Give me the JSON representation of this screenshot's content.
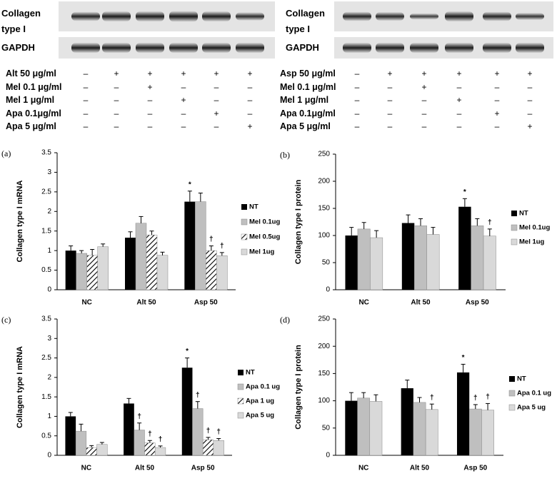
{
  "blots": [
    {
      "protein": "Collagen type I",
      "control": "GAPDH",
      "rows": [
        {
          "label": "Alt 50 μg/ml",
          "marks": [
            "–",
            "+",
            "+",
            "+",
            "+",
            "+"
          ]
        },
        {
          "label": "Mel 0.1 μg/ml",
          "marks": [
            "–",
            "–",
            "+",
            "–",
            "–",
            "–"
          ]
        },
        {
          "label": "Mel 1 μg/ml",
          "marks": [
            "–",
            "–",
            "–",
            "+",
            "–",
            "–"
          ]
        },
        {
          "label": "Apa 0.1μg/ml",
          "marks": [
            "–",
            "–",
            "–",
            "–",
            "+",
            "–"
          ]
        },
        {
          "label": "Apa 5 μg/ml",
          "marks": [
            "–",
            "–",
            "–",
            "–",
            "–",
            "+"
          ]
        }
      ]
    },
    {
      "protein": "Collagen type I",
      "control": "GAPDH",
      "rows": [
        {
          "label": "Asp 50 μg/ml",
          "marks": [
            "–",
            "+",
            "+",
            "+",
            "+",
            "+"
          ]
        },
        {
          "label": "Mel 0.1 μg/ml",
          "marks": [
            "–",
            "–",
            "+",
            "–",
            "–",
            "–"
          ]
        },
        {
          "label": "Mel 1 μg/ml",
          "marks": [
            "–",
            "–",
            "–",
            "+",
            "–",
            "–"
          ]
        },
        {
          "label": "Apa 0.1μg/ml",
          "marks": [
            "–",
            "–",
            "–",
            "–",
            "+",
            "–"
          ]
        },
        {
          "label": "Apa 5 μg/ml",
          "marks": [
            "–",
            "–",
            "–",
            "–",
            "–",
            "+"
          ]
        }
      ]
    }
  ],
  "chart_data": [
    {
      "type": "bar",
      "panel": "(a)",
      "y_label": "Collagen type I mRNA",
      "categories": [
        "NC",
        "Alt 50",
        "Asp 50"
      ],
      "ylim": [
        0,
        3.5
      ],
      "yticks": [
        0,
        0.5,
        1,
        1.5,
        2,
        2.5,
        3,
        3.5
      ],
      "series": [
        {
          "name": "NT",
          "color": "#000000",
          "values": [
            1.0,
            1.33,
            2.25
          ],
          "errors": [
            0.12,
            0.15,
            0.27
          ]
        },
        {
          "name": "Mel 0.1ug",
          "color": "#bfbfbf",
          "values": [
            0.93,
            1.7,
            2.25
          ],
          "errors": [
            0.07,
            0.17,
            0.22
          ]
        },
        {
          "name": "Mel 0.5ug",
          "color": "#ffffff",
          "hatch": true,
          "values": [
            0.88,
            1.4,
            1.0
          ],
          "errors": [
            0.15,
            0.1,
            0.12
          ]
        },
        {
          "name": "Mel 1ug",
          "color": "#d9d9d9",
          "values": [
            1.1,
            0.88,
            0.87
          ],
          "errors": [
            0.07,
            0.08,
            0.08
          ]
        }
      ],
      "annotations": [
        {
          "text": "*",
          "series": 0,
          "category": 2
        },
        {
          "text": "†",
          "series": 2,
          "category": 2
        },
        {
          "text": "†",
          "series": 3,
          "category": 2
        }
      ]
    },
    {
      "type": "bar",
      "panel": "(b)",
      "y_label": "Collagen type I protein",
      "categories": [
        "NC",
        "Alt 50",
        "Asp 50"
      ],
      "ylim": [
        0,
        250
      ],
      "yticks": [
        0,
        50,
        100,
        150,
        200,
        250
      ],
      "series": [
        {
          "name": "NT",
          "color": "#000000",
          "values": [
            100,
            123,
            153
          ],
          "errors": [
            15,
            15,
            15
          ]
        },
        {
          "name": "Mel 0.1ug",
          "color": "#bfbfbf",
          "values": [
            112,
            118,
            118
          ],
          "errors": [
            12,
            13,
            13
          ]
        },
        {
          "name": "Mel 1ug",
          "color": "#d9d9d9",
          "values": [
            96,
            102,
            99
          ],
          "errors": [
            13,
            13,
            13
          ]
        }
      ],
      "annotations": [
        {
          "text": "*",
          "series": 0,
          "category": 2
        },
        {
          "text": "†",
          "series": 2,
          "category": 2
        }
      ]
    },
    {
      "type": "bar",
      "panel": "(c)",
      "y_label": "Collagen type I mRNA",
      "categories": [
        "NC",
        "Alt 50",
        "Asp 50"
      ],
      "ylim": [
        0,
        3.5
      ],
      "yticks": [
        0,
        0.5,
        1,
        1.5,
        2,
        2.5,
        3,
        3.5
      ],
      "series": [
        {
          "name": "NT",
          "color": "#000000",
          "values": [
            1.0,
            1.33,
            2.25
          ],
          "errors": [
            0.1,
            0.13,
            0.25
          ]
        },
        {
          "name": "Apa 0.1 ug",
          "color": "#bfbfbf",
          "values": [
            0.62,
            0.65,
            1.2
          ],
          "errors": [
            0.18,
            0.18,
            0.18
          ]
        },
        {
          "name": "Apa 1 ug",
          "color": "#ffffff",
          "hatch": true,
          "values": [
            0.2,
            0.32,
            0.4
          ],
          "errors": [
            0.05,
            0.06,
            0.06
          ]
        },
        {
          "name": "Apa 5 ug",
          "color": "#d9d9d9",
          "values": [
            0.28,
            0.2,
            0.38
          ],
          "errors": [
            0.05,
            0.04,
            0.05
          ]
        }
      ],
      "annotations": [
        {
          "text": "*",
          "series": 0,
          "category": 2
        },
        {
          "text": "†",
          "series": 1,
          "category": 1
        },
        {
          "text": "†",
          "series": 2,
          "category": 1
        },
        {
          "text": "†",
          "series": 3,
          "category": 1
        },
        {
          "text": "†",
          "series": 1,
          "category": 2
        },
        {
          "text": "†",
          "series": 2,
          "category": 2
        },
        {
          "text": "†",
          "series": 3,
          "category": 2
        }
      ]
    },
    {
      "type": "bar",
      "panel": "(d)",
      "y_label": "Collagen type I protein",
      "categories": [
        "NC",
        "Alt 50",
        "Asp 50"
      ],
      "ylim": [
        0,
        250
      ],
      "yticks": [
        0,
        50,
        100,
        150,
        200,
        250
      ],
      "series": [
        {
          "name": "NT",
          "color": "#000000",
          "values": [
            100,
            123,
            152
          ],
          "errors": [
            15,
            15,
            15
          ]
        },
        {
          "name": "Apa 0.1 ug",
          "color": "#bfbfbf",
          "values": [
            105,
            97,
            85
          ],
          "errors": [
            10,
            9,
            8
          ]
        },
        {
          "name": "Apa 5 ug",
          "color": "#d9d9d9",
          "values": [
            99,
            84,
            83
          ],
          "errors": [
            12,
            10,
            12
          ]
        }
      ],
      "annotations": [
        {
          "text": "*",
          "series": 0,
          "category": 2
        },
        {
          "text": "†",
          "series": 2,
          "category": 1
        },
        {
          "text": "†",
          "series": 1,
          "category": 2
        },
        {
          "text": "†",
          "series": 2,
          "category": 2
        }
      ]
    }
  ]
}
